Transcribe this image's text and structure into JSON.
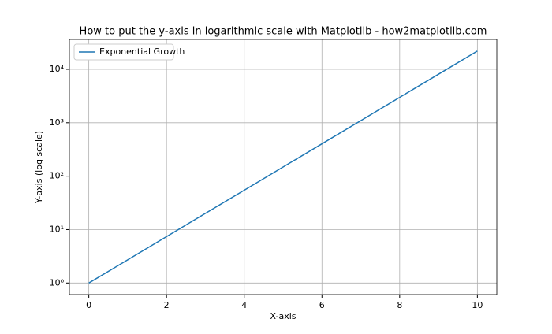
{
  "chart_data": {
    "type": "line",
    "title": "How to put the y-axis in logarithmic scale with Matplotlib - how2matplotlib.com",
    "x_label": "X-axis",
    "y_label": "Y-axis (log scale)",
    "x": [
      0,
      1,
      2,
      3,
      4,
      5,
      6,
      7,
      8,
      9,
      10
    ],
    "series": [
      {
        "name": "Exponential Growth",
        "color": "#1f77b4",
        "values": [
          1,
          2.718,
          7.389,
          20.09,
          54.6,
          148.4,
          403.4,
          1096.6,
          2981,
          8103,
          22026
        ]
      }
    ],
    "xlim": [
      -0.5,
      10.5
    ],
    "xticks": [
      0,
      2,
      4,
      6,
      8,
      10
    ],
    "ylim": [
      0.607,
      36300
    ],
    "y_scale": "log",
    "yticks": [
      {
        "value": 1,
        "label": "10⁰"
      },
      {
        "value": 10,
        "label": "10¹"
      },
      {
        "value": 100,
        "label": "10²"
      },
      {
        "value": 1000,
        "label": "10³"
      },
      {
        "value": 10000,
        "label": "10⁴"
      }
    ],
    "grid": true,
    "legend": "upper left"
  }
}
